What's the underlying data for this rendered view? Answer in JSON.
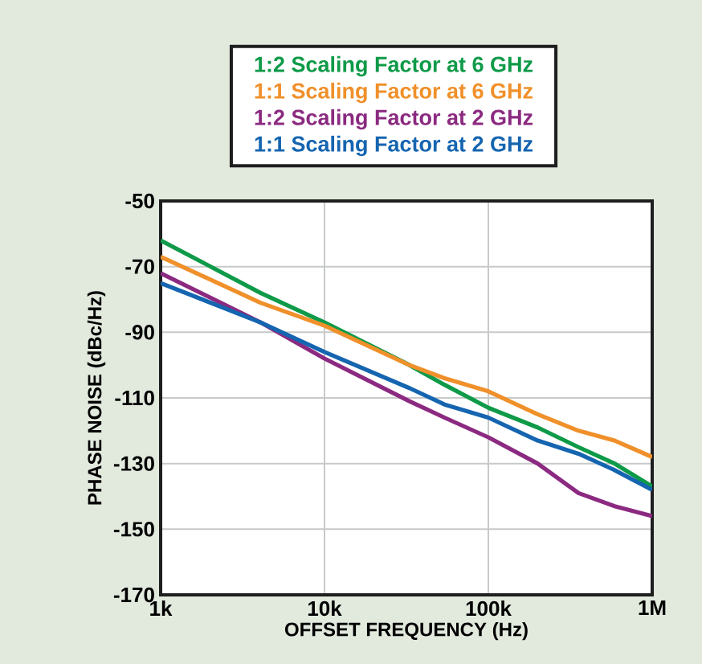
{
  "chart_data": {
    "type": "line",
    "xlabel": "OFFSET FREQUENCY (Hz)",
    "ylabel": "PHASE NOISE (dBc/Hz)",
    "log": "x",
    "grid": true,
    "legend": "top",
    "line_style": "solid",
    "marker": "none",
    "xlim": [
      1000,
      1000000
    ],
    "ylim": [
      -170,
      -50
    ],
    "xticks": [
      {
        "value": 1000,
        "label": "1k"
      },
      {
        "value": 10000,
        "label": "10k"
      },
      {
        "value": 100000,
        "label": "100k"
      },
      {
        "value": 1000000,
        "label": "1M"
      }
    ],
    "yticks": [
      -170,
      -150,
      -130,
      -110,
      -90,
      -70,
      -50
    ],
    "x": [
      1000,
      4070,
      10000,
      33000,
      54000,
      100000,
      200000,
      355000,
      590000,
      1000000
    ],
    "series": [
      {
        "name": "1:2 Scaling Factor at 6 GHz",
        "color": "#0e9a48",
        "values": [
          -62,
          -78,
          -87,
          -100,
          -106,
          -113,
          -119,
          -125,
          -130,
          -137
        ]
      },
      {
        "name": "1:1 Scaling Factor at 6 GHz",
        "color": "#f0902a",
        "values": [
          -67,
          -81,
          -88,
          -100,
          -104,
          -108,
          -115,
          -120,
          -123,
          -128
        ]
      },
      {
        "name": "1:2 Scaling Factor at 2 GHz",
        "color": "#8b2a80",
        "values": [
          -72,
          -87,
          -98,
          -111,
          -116,
          -122,
          -130,
          -139,
          -143,
          -146
        ]
      },
      {
        "name": "1:1 Scaling Factor at 2 GHz",
        "color": "#1565b0",
        "values": [
          -75,
          -87,
          -96,
          -107,
          -112,
          -116,
          -123,
          -127,
          -132,
          -138
        ]
      }
    ]
  }
}
